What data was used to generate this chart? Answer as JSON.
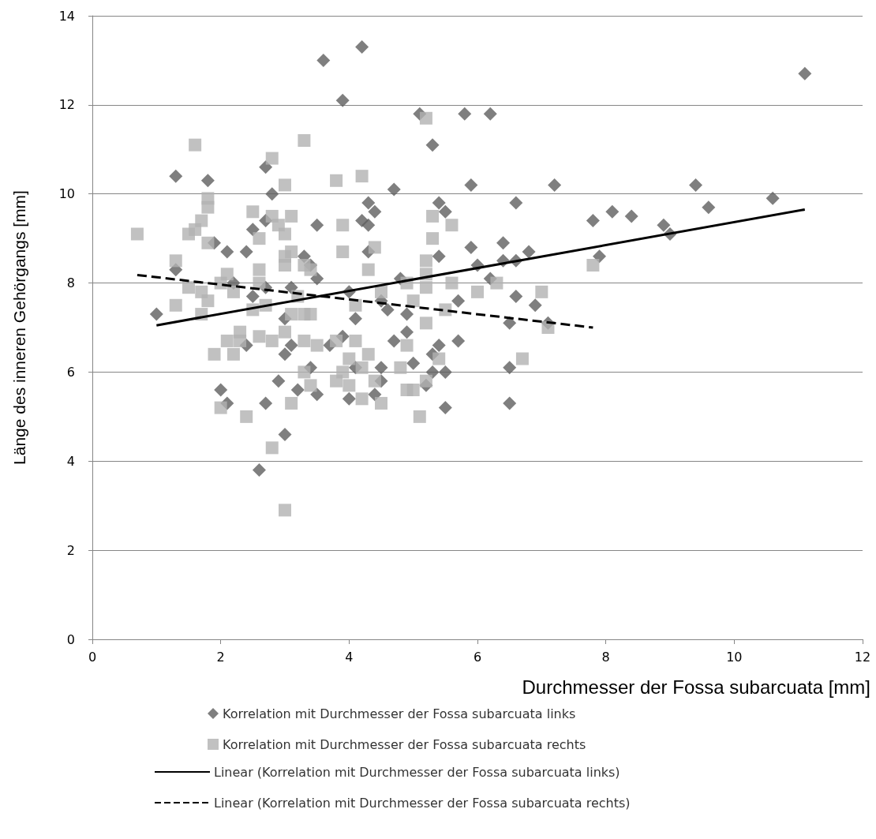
{
  "chart_data": {
    "type": "scatter",
    "xlabel": "Durchmesser der Fossa subarcuata [mm]",
    "ylabel": "Länge des inneren Gehörgangs [mm]",
    "xlim": [
      0,
      12
    ],
    "xticks": [
      0,
      2,
      4,
      6,
      8,
      10,
      12
    ],
    "ylim": [
      0,
      14
    ],
    "yticks": [
      0,
      2,
      4,
      6,
      8,
      10,
      12,
      14
    ],
    "grid": "y",
    "legend": "bottom",
    "series": [
      {
        "name": "Korrelation mit Durchmesser der Fossa subarcuata links",
        "marker": "diamond",
        "color": "#5f5f5f",
        "x": [
          1.0,
          1.3,
          1.3,
          1.8,
          1.9,
          2.1,
          2.2,
          2.0,
          2.1,
          2.4,
          2.5,
          2.5,
          2.4,
          2.6,
          2.7,
          2.7,
          2.8,
          2.7,
          2.7,
          2.9,
          3.0,
          3.0,
          3.0,
          3.1,
          3.1,
          3.2,
          3.3,
          3.4,
          3.4,
          3.5,
          3.5,
          3.5,
          3.6,
          3.7,
          3.9,
          3.9,
          4.0,
          4.0,
          4.1,
          4.1,
          4.2,
          4.2,
          4.3,
          4.3,
          4.3,
          4.4,
          4.4,
          4.5,
          4.5,
          4.6,
          4.5,
          4.7,
          4.7,
          4.8,
          4.9,
          4.9,
          5.0,
          5.1,
          5.2,
          5.3,
          5.3,
          5.3,
          5.4,
          5.4,
          5.4,
          5.5,
          5.5,
          5.5,
          5.7,
          5.7,
          5.8,
          5.9,
          5.9,
          6.0,
          6.2,
          6.2,
          6.4,
          6.4,
          6.5,
          6.5,
          6.5,
          6.6,
          6.6,
          6.6,
          6.8,
          6.9,
          7.1,
          7.2,
          7.8,
          7.9,
          8.1,
          8.4,
          8.9,
          9.0,
          9.4,
          9.6,
          10.6,
          11.1
        ],
        "values": [
          7.3,
          10.4,
          8.3,
          10.3,
          8.9,
          8.7,
          8.0,
          5.6,
          5.3,
          8.7,
          9.2,
          7.7,
          6.6,
          3.8,
          10.6,
          9.4,
          10.0,
          7.9,
          5.3,
          5.8,
          7.2,
          6.4,
          4.6,
          7.9,
          6.6,
          5.6,
          8.6,
          8.4,
          6.1,
          9.3,
          8.1,
          5.5,
          13.0,
          6.6,
          12.1,
          6.8,
          7.8,
          5.4,
          7.2,
          6.1,
          13.3,
          9.4,
          9.8,
          9.3,
          8.7,
          9.6,
          5.5,
          7.6,
          6.1,
          7.4,
          5.8,
          10.1,
          6.7,
          8.1,
          7.3,
          6.9,
          6.2,
          11.8,
          5.7,
          11.1,
          6.4,
          6.0,
          9.8,
          8.6,
          6.6,
          9.6,
          6.0,
          5.2,
          7.6,
          6.7,
          11.8,
          8.8,
          10.2,
          8.4,
          11.8,
          8.1,
          8.9,
          8.5,
          7.1,
          6.1,
          5.3,
          9.8,
          8.5,
          7.7,
          8.7,
          7.5,
          7.1,
          10.2,
          9.4,
          8.6,
          9.6,
          9.5,
          9.3,
          9.1,
          10.2,
          9.7,
          9.9,
          12.7
        ]
      },
      {
        "name": "Korrelation mit Durchmesser der Fossa subarcuata rechts",
        "marker": "square",
        "color": "#b2b2b2",
        "x": [
          0.7,
          1.3,
          1.3,
          1.5,
          1.6,
          1.6,
          1.5,
          1.7,
          1.7,
          1.7,
          1.8,
          1.8,
          1.8,
          1.8,
          1.9,
          2.0,
          2.0,
          2.1,
          2.1,
          2.2,
          2.2,
          2.3,
          2.3,
          2.4,
          2.5,
          2.5,
          2.6,
          2.6,
          2.6,
          2.6,
          2.7,
          2.8,
          2.8,
          2.8,
          2.8,
          2.9,
          3.0,
          3.0,
          3.0,
          3.0,
          3.0,
          3.0,
          3.1,
          3.1,
          3.1,
          3.1,
          3.2,
          3.3,
          3.3,
          3.3,
          3.3,
          3.3,
          3.4,
          3.4,
          3.4,
          3.5,
          3.8,
          3.8,
          3.8,
          3.9,
          3.9,
          3.9,
          4.0,
          4.0,
          4.1,
          4.1,
          4.2,
          4.2,
          4.2,
          4.3,
          4.3,
          4.4,
          4.4,
          4.5,
          4.5,
          4.8,
          4.9,
          4.9,
          4.9,
          5.0,
          5.0,
          5.1,
          5.2,
          5.2,
          5.2,
          5.2,
          5.2,
          5.2,
          5.3,
          5.3,
          5.4,
          5.5,
          5.6,
          5.6,
          6.0,
          6.3,
          6.7,
          7.0,
          7.1,
          7.8
        ],
        "values": [
          9.1,
          8.5,
          7.5,
          9.1,
          11.1,
          9.2,
          7.9,
          9.4,
          7.8,
          7.3,
          9.9,
          9.7,
          8.9,
          7.6,
          6.4,
          8.0,
          5.2,
          8.2,
          6.7,
          7.8,
          6.4,
          6.9,
          6.7,
          5.0,
          9.6,
          7.4,
          9.0,
          8.3,
          8.0,
          6.8,
          7.5,
          10.8,
          9.5,
          6.7,
          4.3,
          9.3,
          10.2,
          9.1,
          8.6,
          8.4,
          6.9,
          2.9,
          9.5,
          8.7,
          7.3,
          5.3,
          7.7,
          11.2,
          8.4,
          7.3,
          6.7,
          6.0,
          8.3,
          7.3,
          5.7,
          6.6,
          10.3,
          6.7,
          5.8,
          9.3,
          8.7,
          6.0,
          6.3,
          5.7,
          7.5,
          6.7,
          10.4,
          6.1,
          5.4,
          8.3,
          6.4,
          8.8,
          5.8,
          7.8,
          5.3,
          6.1,
          8.0,
          6.6,
          5.6,
          7.6,
          5.6,
          5.0,
          11.7,
          8.5,
          8.2,
          7.9,
          7.1,
          5.8,
          9.5,
          9.0,
          6.3,
          7.4,
          9.3,
          8.0,
          7.8,
          8.0,
          6.3,
          7.8,
          7.0,
          8.4
        ]
      },
      {
        "name": "Linear (Korrelation mit Durchmesser der Fossa subarcuata links)",
        "type": "line",
        "marker": "none",
        "line_style": "solid",
        "color": "#000000",
        "x": [
          1.0,
          11.1
        ],
        "values": [
          7.05,
          9.65
        ]
      },
      {
        "name": "Linear (Korrelation mit Durchmesser der Fossa subarcuata rechts)",
        "type": "line",
        "marker": "none",
        "line_style": "dashed",
        "color": "#000000",
        "x": [
          0.7,
          7.8
        ],
        "values": [
          8.18,
          7.0
        ]
      }
    ]
  }
}
